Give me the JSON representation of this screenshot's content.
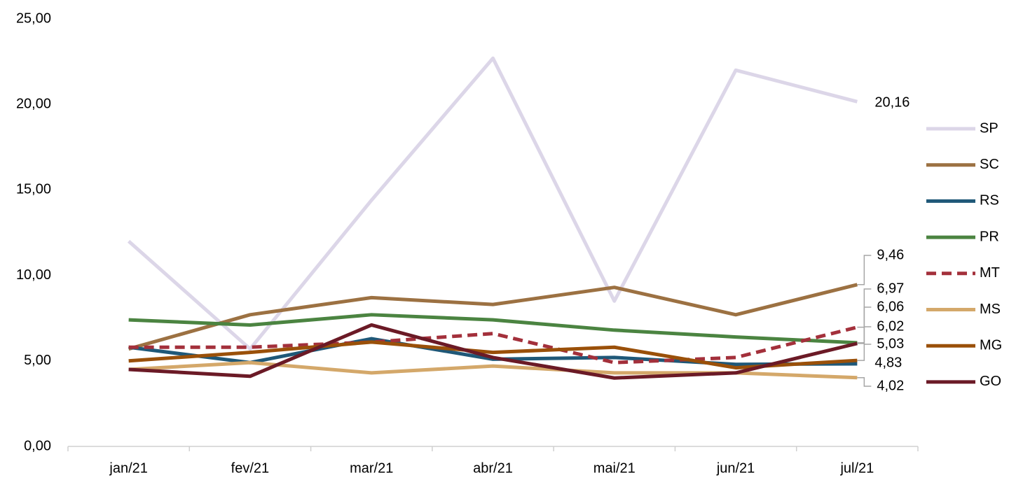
{
  "chart_data": {
    "type": "line",
    "categories": [
      "jan/21",
      "fev/21",
      "mar/21",
      "abr/21",
      "mai/21",
      "jun/21",
      "jul/21"
    ],
    "ylim": [
      0,
      25
    ],
    "yticks": [
      {
        "value": 0,
        "label": "0,00"
      },
      {
        "value": 5,
        "label": "5,00"
      },
      {
        "value": 10,
        "label": "10,00"
      },
      {
        "value": 15,
        "label": "15,00"
      },
      {
        "value": 20,
        "label": "20,00"
      },
      {
        "value": 25,
        "label": "25,00"
      }
    ],
    "grid": false,
    "legend": "right",
    "series": [
      {
        "name": "SP",
        "color": "#dcd6e8",
        "dash": false,
        "values": [
          12.0,
          5.7,
          14.4,
          22.7,
          8.5,
          22.0,
          20.16
        ],
        "value_labels": [
          null,
          null,
          null,
          null,
          null,
          null,
          "20,16"
        ]
      },
      {
        "name": "SC",
        "color": "#9c7142",
        "dash": false,
        "values": [
          5.7,
          7.7,
          8.7,
          8.3,
          9.3,
          7.7,
          9.46
        ],
        "value_labels": [
          null,
          null,
          null,
          null,
          null,
          null,
          "9,46"
        ]
      },
      {
        "name": "RS",
        "color": "#1f5878",
        "dash": false,
        "values": [
          5.8,
          4.9,
          6.3,
          5.1,
          5.2,
          4.8,
          4.83
        ],
        "value_labels": [
          null,
          null,
          null,
          null,
          null,
          null,
          "4,83"
        ]
      },
      {
        "name": "PR",
        "color": "#4b8441",
        "dash": false,
        "values": [
          7.4,
          7.1,
          7.7,
          7.4,
          6.8,
          6.4,
          6.06
        ],
        "value_labels": [
          null,
          null,
          null,
          null,
          null,
          null,
          "6,06"
        ]
      },
      {
        "name": "MT",
        "color": "#a3303b",
        "dash": true,
        "values": [
          5.8,
          5.8,
          6.1,
          6.6,
          4.9,
          5.2,
          6.97
        ],
        "value_labels": [
          null,
          null,
          null,
          null,
          null,
          null,
          "6,97"
        ]
      },
      {
        "name": "MS",
        "color": "#d4a86a",
        "dash": false,
        "values": [
          4.5,
          4.9,
          4.3,
          4.7,
          4.3,
          4.3,
          4.02
        ],
        "value_labels": [
          null,
          null,
          null,
          null,
          null,
          null,
          "4,02"
        ]
      },
      {
        "name": "MG",
        "color": "#9a5009",
        "dash": false,
        "values": [
          5.0,
          5.5,
          6.1,
          5.5,
          5.8,
          4.6,
          5.03
        ],
        "value_labels": [
          null,
          null,
          null,
          null,
          null,
          null,
          "5,03"
        ]
      },
      {
        "name": "GO",
        "color": "#6b1a26",
        "dash": false,
        "values": [
          4.5,
          4.1,
          7.1,
          5.2,
          4.0,
          4.3,
          6.02
        ],
        "value_labels": [
          null,
          null,
          null,
          null,
          null,
          null,
          "6,02"
        ]
      }
    ]
  }
}
